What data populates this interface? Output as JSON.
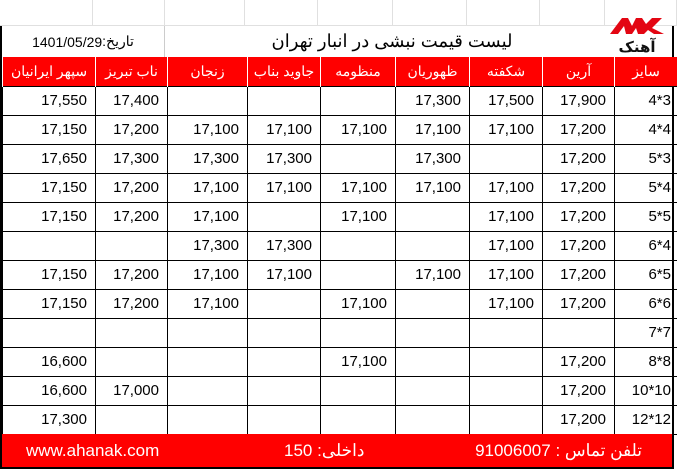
{
  "logo": {
    "text": "آهنک",
    "color": "#e30613"
  },
  "header": {
    "title": "لیست قیمت نبشی در انبار تهران",
    "date_label": "تاریخ:",
    "date": "1401/05/29"
  },
  "columns": [
    "سایز",
    "آرین",
    "شکفته",
    "ظهوریان",
    "منظومه",
    "جاوید بناب",
    "زنجان",
    "ناب تبریز",
    "سپهر ایرانیان"
  ],
  "rows": [
    [
      "4*3",
      "17,900",
      "17,500",
      "17,300",
      "",
      "",
      "",
      "17,400",
      "17,550"
    ],
    [
      "4*4",
      "17,200",
      "17,100",
      "17,100",
      "17,100",
      "17,100",
      "17,100",
      "17,200",
      "17,150"
    ],
    [
      "5*3",
      "17,200",
      "",
      "17,300",
      "",
      "17,300",
      "17,300",
      "17,300",
      "17,650"
    ],
    [
      "5*4",
      "17,200",
      "17,100",
      "17,100",
      "17,100",
      "17,100",
      "17,100",
      "17,200",
      "17,150"
    ],
    [
      "5*5",
      "17,200",
      "17,100",
      "",
      "17,100",
      "",
      "17,100",
      "17,200",
      "17,150"
    ],
    [
      "6*4",
      "17,200",
      "17,100",
      "",
      "",
      "17,300",
      "17,300",
      "",
      ""
    ],
    [
      "6*5",
      "17,200",
      "17,100",
      "17,100",
      "",
      "17,100",
      "17,100",
      "17,200",
      "17,150"
    ],
    [
      "6*6",
      "17,200",
      "17,100",
      "",
      "17,100",
      "",
      "17,100",
      "17,200",
      "17,150"
    ],
    [
      "7*7",
      "",
      "",
      "",
      "",
      "",
      "",
      "",
      ""
    ],
    [
      "8*8",
      "17,200",
      "",
      "",
      "17,100",
      "",
      "",
      "",
      "16,600"
    ],
    [
      "10*10",
      "17,200",
      "",
      "",
      "",
      "",
      "",
      "17,000",
      "16,600"
    ],
    [
      "12*12",
      "17,200",
      "",
      "",
      "",
      "",
      "",
      "",
      "17,300"
    ]
  ],
  "footer": {
    "phone_label": "تلفن تماس :",
    "phone": "91006007",
    "ext_label": "داخلی:",
    "ext": "150",
    "website": "www.ahanak.com"
  },
  "colors": {
    "accent": "#ff0000"
  }
}
